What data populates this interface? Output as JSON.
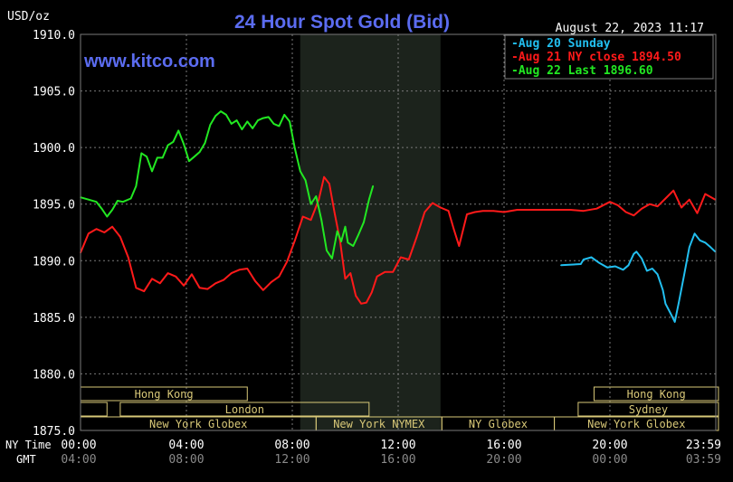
{
  "header": {
    "unit_label": "USD/oz",
    "title": "24 Hour Spot Gold (Bid)",
    "timestamp": "August 22, 2023 11:17",
    "watermark": "www.kitco.com"
  },
  "colors": {
    "background": "#000000",
    "grid": "#7a7a7a",
    "title": "#5b6cf0",
    "watermark": "#5b6cf0",
    "text": "#ffffff",
    "gmt_text": "#8a8a8a",
    "shade": "#1c231c",
    "session_border": "#d8c878",
    "aug20": "#22bff0",
    "aug21": "#ff1a1a",
    "aug22": "#22e822"
  },
  "axis_labels": {
    "ny_time": "NY Time",
    "gmt": "GMT"
  },
  "sessions": [
    {
      "label": "Hong Kong",
      "row": 0
    },
    {
      "label": "London",
      "row": 1
    },
    {
      "label": "New York Globex",
      "row": 2
    },
    {
      "label": "New York NYMEX",
      "row": 2
    },
    {
      "label": "NY Globex",
      "row": 2
    },
    {
      "label": "Hong Kong",
      "row": 0
    },
    {
      "label": "Sydney",
      "row": 1
    },
    {
      "label": "New York Globex",
      "row": 2
    }
  ],
  "chart_data": {
    "type": "line",
    "title": "24 Hour Spot Gold (Bid)",
    "ylabel": "USD/oz",
    "ylim": [
      1875.0,
      1910.0
    ],
    "xlim": [
      0,
      24
    ],
    "grid": true,
    "legend_position": "top-right",
    "y_ticks": [
      "1875.0",
      "1880.0",
      "1885.0",
      "1890.0",
      "1895.0",
      "1900.0",
      "1905.0",
      "1910.0"
    ],
    "x_ticks_ny": [
      "00:00",
      "04:00",
      "08:00",
      "12:00",
      "16:00",
      "20:00",
      "23:59"
    ],
    "x_ticks_gmt": [
      "04:00",
      "08:00",
      "12:00",
      "16:00",
      "20:00",
      "00:00",
      "03:59"
    ],
    "series": [
      {
        "name": "Aug 20 Sunday",
        "legend": "Aug 20 Sunday",
        "color_key": "aug20",
        "x": [
          18.15,
          18.9,
          19.0,
          19.3,
          19.6,
          19.9,
          20.2,
          20.5,
          20.7,
          20.9,
          21.0,
          21.2,
          21.4,
          21.6,
          21.8,
          22.0,
          22.1,
          22.3,
          22.45,
          22.6,
          22.8,
          23.0,
          23.2,
          23.4,
          23.6,
          23.8,
          23.98
        ],
        "y": [
          1889.6,
          1889.7,
          1890.1,
          1890.3,
          1889.8,
          1889.4,
          1889.5,
          1889.2,
          1889.6,
          1890.6,
          1890.8,
          1890.2,
          1889.1,
          1889.3,
          1888.8,
          1887.4,
          1886.2,
          1885.3,
          1884.6,
          1886.3,
          1888.7,
          1891.2,
          1892.4,
          1891.8,
          1891.6,
          1891.2,
          1890.8
        ]
      },
      {
        "name": "Aug 21 NY close 1894.50",
        "legend": "Aug 21 NY close 1894.50",
        "color_key": "aug21",
        "x": [
          0.0,
          0.3,
          0.6,
          0.9,
          1.2,
          1.5,
          1.8,
          2.1,
          2.4,
          2.7,
          3.0,
          3.3,
          3.6,
          3.9,
          4.2,
          4.5,
          4.8,
          5.1,
          5.4,
          5.7,
          6.0,
          6.3,
          6.6,
          6.9,
          7.2,
          7.5,
          7.8,
          8.1,
          8.4,
          8.7,
          9.0,
          9.2,
          9.4,
          9.6,
          9.8,
          10.0,
          10.2,
          10.4,
          10.6,
          10.8,
          11.0,
          11.2,
          11.5,
          11.8,
          12.1,
          12.4,
          12.7,
          13.0,
          13.3,
          13.6,
          13.9,
          14.1,
          14.3,
          14.6,
          14.9,
          15.2,
          15.6,
          16.0,
          16.5,
          17.0,
          17.5,
          18.0,
          18.5,
          19.0,
          19.5,
          20.0,
          20.3,
          20.6,
          20.9,
          21.2,
          21.5,
          21.8,
          22.1,
          22.4,
          22.7,
          23.0,
          23.3,
          23.6,
          23.98
        ],
        "y": [
          1890.7,
          1892.4,
          1892.8,
          1892.5,
          1893.0,
          1892.1,
          1890.3,
          1887.6,
          1887.3,
          1888.4,
          1888.0,
          1888.9,
          1888.6,
          1887.8,
          1888.8,
          1887.6,
          1887.5,
          1888.0,
          1888.3,
          1888.9,
          1889.2,
          1889.3,
          1888.2,
          1887.4,
          1888.1,
          1888.6,
          1889.9,
          1891.8,
          1893.9,
          1893.6,
          1895.4,
          1897.4,
          1896.8,
          1894.2,
          1891.8,
          1888.4,
          1888.9,
          1886.9,
          1886.2,
          1886.3,
          1887.2,
          1888.6,
          1889.0,
          1889.0,
          1890.3,
          1890.1,
          1892.1,
          1894.3,
          1895.1,
          1894.7,
          1894.4,
          1892.8,
          1891.3,
          1894.1,
          1894.3,
          1894.4,
          1894.4,
          1894.3,
          1894.5,
          1894.5,
          1894.5,
          1894.5,
          1894.5,
          1894.4,
          1894.6,
          1895.2,
          1894.9,
          1894.3,
          1894.0,
          1894.6,
          1895.0,
          1894.8,
          1895.5,
          1896.2,
          1894.7,
          1895.4,
          1894.2,
          1895.9,
          1895.4
        ]
      },
      {
        "name": "Aug 22 Last 1896.60",
        "legend": "Aug 22 Last 1896.60",
        "color_key": "aug22",
        "x": [
          0.0,
          0.3,
          0.6,
          0.8,
          1.0,
          1.2,
          1.4,
          1.6,
          1.9,
          2.1,
          2.3,
          2.5,
          2.7,
          2.9,
          3.1,
          3.3,
          3.5,
          3.7,
          3.9,
          4.1,
          4.3,
          4.5,
          4.7,
          4.9,
          5.1,
          5.3,
          5.5,
          5.7,
          5.9,
          6.1,
          6.3,
          6.5,
          6.7,
          6.9,
          7.1,
          7.3,
          7.5,
          7.7,
          7.9,
          8.1,
          8.3,
          8.5,
          8.7,
          8.9,
          9.1,
          9.3,
          9.5,
          9.7,
          9.85,
          10.0,
          10.1,
          10.3,
          10.5,
          10.7,
          10.9,
          11.05
        ],
        "y": [
          1895.6,
          1895.4,
          1895.2,
          1894.6,
          1893.9,
          1894.5,
          1895.3,
          1895.2,
          1895.5,
          1896.6,
          1899.5,
          1899.2,
          1897.9,
          1899.1,
          1899.1,
          1900.2,
          1900.5,
          1901.5,
          1900.3,
          1898.8,
          1899.2,
          1899.6,
          1900.4,
          1902.0,
          1902.8,
          1903.2,
          1902.9,
          1902.1,
          1902.4,
          1901.6,
          1902.3,
          1901.7,
          1902.4,
          1902.6,
          1902.7,
          1902.1,
          1901.9,
          1902.9,
          1902.3,
          1899.9,
          1897.9,
          1897.1,
          1895.0,
          1895.7,
          1893.6,
          1890.9,
          1890.2,
          1892.6,
          1891.7,
          1893.0,
          1891.6,
          1891.3,
          1892.3,
          1893.4,
          1895.4,
          1896.6
        ]
      }
    ]
  }
}
